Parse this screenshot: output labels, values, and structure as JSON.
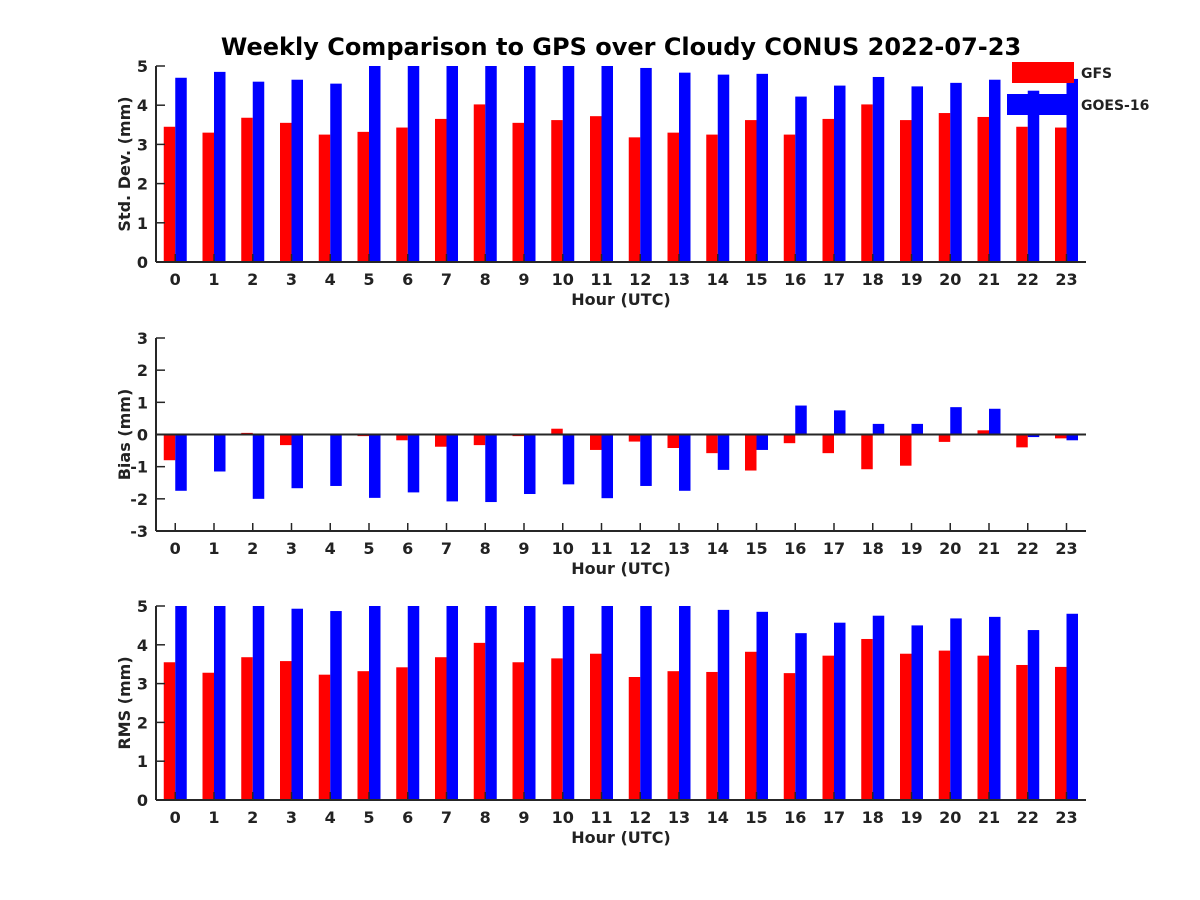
{
  "title": "Weekly Comparison to GPS over Cloudy CONUS 2022-07-23",
  "legend": [
    {
      "name": "GFS",
      "color": "#ff0000"
    },
    {
      "name": "GOES-16",
      "color": "#0000ff"
    }
  ],
  "chart_data": [
    {
      "type": "bar",
      "title": "Weekly Comparison to GPS over Cloudy CONUS 2022-07-23",
      "xlabel": "Hour (UTC)",
      "ylabel": "Std. Dev. (mm)",
      "ylim": [
        0,
        5
      ],
      "yticks": [
        0,
        1,
        2,
        3,
        4,
        5
      ],
      "legend_position": "top-right",
      "categories": [
        "0",
        "1",
        "2",
        "3",
        "4",
        "5",
        "6",
        "7",
        "8",
        "9",
        "10",
        "11",
        "12",
        "13",
        "14",
        "15",
        "16",
        "17",
        "18",
        "19",
        "20",
        "21",
        "22",
        "23"
      ],
      "series": [
        {
          "name": "GFS",
          "color": "#ff0000",
          "values": [
            3.45,
            3.3,
            3.68,
            3.55,
            3.25,
            3.32,
            3.43,
            3.65,
            4.02,
            3.55,
            3.62,
            3.72,
            3.18,
            3.3,
            3.25,
            3.62,
            3.25,
            3.65,
            4.02,
            3.62,
            3.8,
            3.7,
            3.45,
            3.43
          ]
        },
        {
          "name": "GOES-16",
          "color": "#0000ff",
          "values": [
            4.7,
            4.85,
            4.6,
            4.65,
            4.55,
            5.0,
            5.0,
            5.0,
            5.0,
            5.0,
            5.0,
            5.0,
            4.95,
            4.83,
            4.78,
            4.8,
            4.22,
            4.5,
            4.72,
            4.48,
            4.57,
            4.65,
            4.37,
            4.67
          ]
        }
      ]
    },
    {
      "type": "bar",
      "xlabel": "Hour (UTC)",
      "ylabel": "Bias (mm)",
      "ylim": [
        -3,
        3
      ],
      "yticks": [
        -3,
        -2,
        -1,
        0,
        1,
        2,
        3
      ],
      "categories": [
        "0",
        "1",
        "2",
        "3",
        "4",
        "5",
        "6",
        "7",
        "8",
        "9",
        "10",
        "11",
        "12",
        "13",
        "14",
        "15",
        "16",
        "17",
        "18",
        "19",
        "20",
        "21",
        "22",
        "23"
      ],
      "series": [
        {
          "name": "GFS",
          "color": "#ff0000",
          "values": [
            -0.8,
            0.02,
            0.05,
            -0.33,
            -0.03,
            -0.05,
            -0.18,
            -0.38,
            -0.33,
            -0.05,
            0.18,
            -0.48,
            -0.22,
            -0.42,
            -0.58,
            -1.12,
            -0.27,
            -0.58,
            -1.08,
            -0.97,
            -0.23,
            0.13,
            -0.4,
            -0.12
          ]
        },
        {
          "name": "GOES-16",
          "color": "#0000ff",
          "values": [
            -1.75,
            -1.15,
            -2.0,
            -1.67,
            -1.6,
            -1.97,
            -1.8,
            -2.08,
            -2.1,
            -1.85,
            -1.55,
            -1.98,
            -1.6,
            -1.75,
            -1.1,
            -0.48,
            0.9,
            0.75,
            0.33,
            0.33,
            0.85,
            0.8,
            -0.08,
            -0.18
          ]
        }
      ]
    },
    {
      "type": "bar",
      "xlabel": "Hour (UTC)",
      "ylabel": "RMS (mm)",
      "ylim": [
        0,
        5
      ],
      "yticks": [
        0,
        1,
        2,
        3,
        4,
        5
      ],
      "categories": [
        "0",
        "1",
        "2",
        "3",
        "4",
        "5",
        "6",
        "7",
        "8",
        "9",
        "10",
        "11",
        "12",
        "13",
        "14",
        "15",
        "16",
        "17",
        "18",
        "19",
        "20",
        "21",
        "22",
        "23"
      ],
      "series": [
        {
          "name": "GFS",
          "color": "#ff0000",
          "values": [
            3.55,
            3.28,
            3.68,
            3.58,
            3.23,
            3.32,
            3.42,
            3.68,
            4.05,
            3.55,
            3.65,
            3.77,
            3.17,
            3.32,
            3.3,
            3.82,
            3.27,
            3.72,
            4.15,
            3.77,
            3.85,
            3.72,
            3.48,
            3.43
          ]
        },
        {
          "name": "GOES-16",
          "color": "#0000ff",
          "values": [
            5.0,
            5.0,
            5.0,
            4.93,
            4.87,
            5.0,
            5.0,
            5.0,
            5.0,
            5.0,
            5.0,
            5.0,
            5.0,
            5.0,
            4.9,
            4.85,
            4.3,
            4.57,
            4.75,
            4.5,
            4.68,
            4.72,
            4.38,
            4.8
          ]
        }
      ]
    }
  ]
}
